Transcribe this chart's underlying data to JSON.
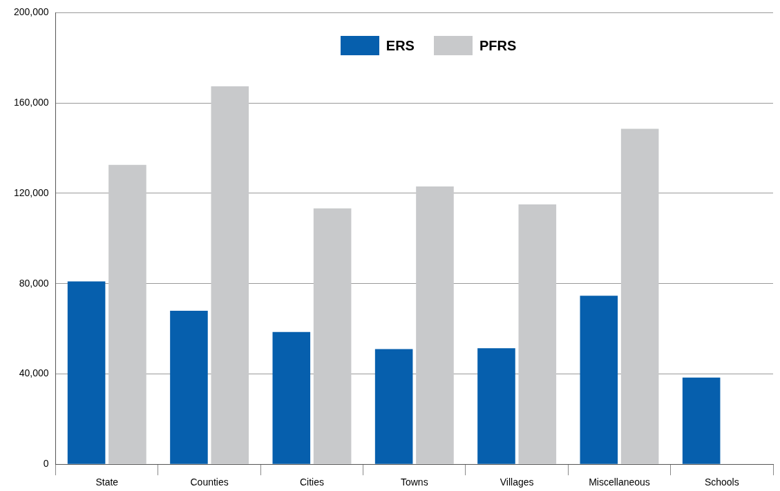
{
  "chart_data": {
    "type": "bar",
    "categories": [
      "State",
      "Counties",
      "Cities",
      "Towns",
      "Villages",
      "Miscellaneous",
      "Schools"
    ],
    "series": [
      {
        "name": "ERS",
        "color": "#065fad",
        "values": [
          81000,
          68000,
          58600,
          51000,
          51400,
          74600,
          38400
        ]
      },
      {
        "name": "PFRS",
        "color": "#c8c9cb",
        "values": [
          132600,
          167400,
          113300,
          123000,
          115100,
          148600,
          null
        ]
      }
    ],
    "ylim": [
      0,
      200000
    ],
    "yticks": [
      {
        "value": 0,
        "label": "0"
      },
      {
        "value": 40000,
        "label": "40,000"
      },
      {
        "value": 80000,
        "label": "80,000"
      },
      {
        "value": 120000,
        "label": "120,000"
      },
      {
        "value": 160000,
        "label": "160,000"
      },
      {
        "value": 200000,
        "label": "200,000"
      }
    ],
    "grid": "y",
    "legend": "top"
  }
}
